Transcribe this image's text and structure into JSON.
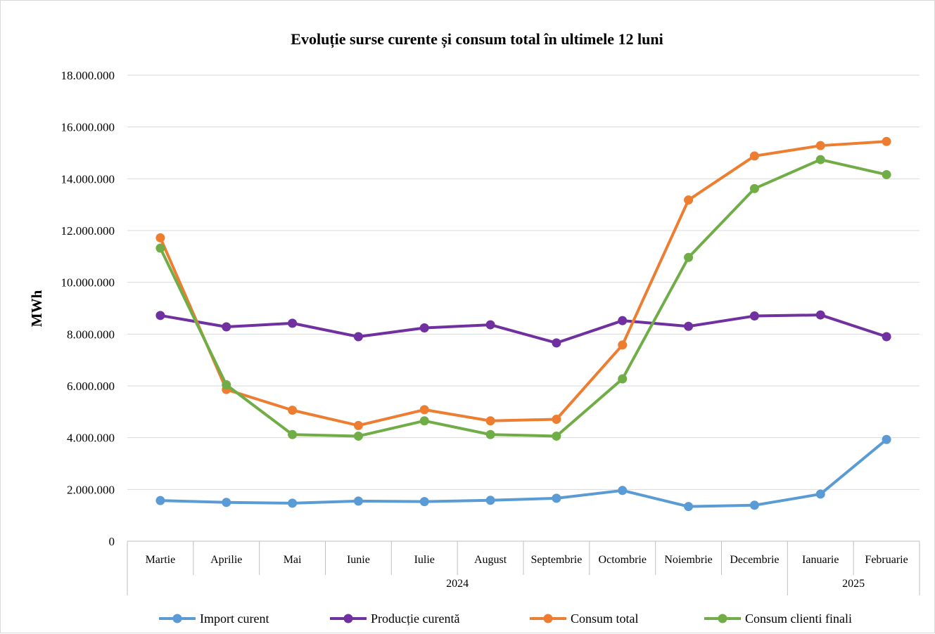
{
  "chart_data": {
    "type": "line",
    "title": "Evoluție surse curente și consum total în ultimele 12 luni",
    "xlabel": "",
    "ylabel": "MWh",
    "ylim": [
      0,
      18000000
    ],
    "yticks": [
      "0",
      "2.000.000",
      "4.000.000",
      "6.000.000",
      "8.000.000",
      "10.000.000",
      "12.000.000",
      "14.000.000",
      "16.000.000",
      "18.000.000"
    ],
    "categories": [
      "Martie",
      "Aprilie",
      "Mai",
      "Iunie",
      "Iulie",
      "August",
      "Septembrie",
      "Octombrie",
      "Noiembrie",
      "Decembrie",
      "Ianuarie",
      "Februarie"
    ],
    "year_groups": [
      {
        "label": "2024",
        "count": 10
      },
      {
        "label": "2025",
        "count": 2
      }
    ],
    "grid": true,
    "legend": "bottom",
    "series": [
      {
        "name": "Import curent",
        "color": "#5b9bd5",
        "values": [
          1570000,
          1500000,
          1470000,
          1550000,
          1530000,
          1580000,
          1660000,
          1960000,
          1340000,
          1390000,
          1820000,
          3930000
        ]
      },
      {
        "name": "Producție curentă",
        "color": "#7030a0",
        "values": [
          8720000,
          8280000,
          8420000,
          7900000,
          8240000,
          8360000,
          7660000,
          8520000,
          8300000,
          8700000,
          8740000,
          7900000
        ]
      },
      {
        "name": "Consum total",
        "color": "#ed7d31",
        "values": [
          11720000,
          5860000,
          5060000,
          4470000,
          5080000,
          4650000,
          4710000,
          7580000,
          13180000,
          14880000,
          15280000,
          15440000
        ]
      },
      {
        "name": "Consum clienti finali",
        "color": "#70ad47",
        "values": [
          11320000,
          6040000,
          4120000,
          4060000,
          4650000,
          4120000,
          4060000,
          6270000,
          10960000,
          13620000,
          14740000,
          14160000
        ]
      }
    ]
  }
}
